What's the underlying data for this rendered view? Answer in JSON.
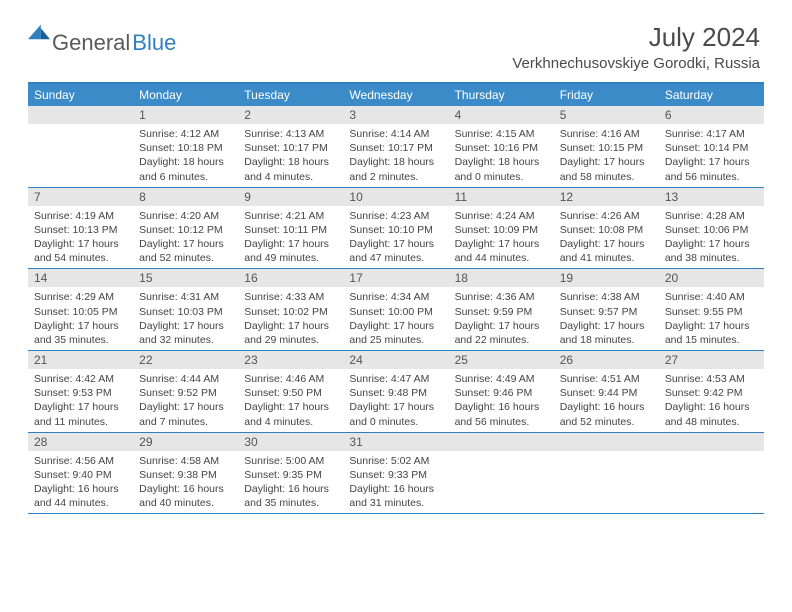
{
  "brand": {
    "word1": "General",
    "word2": "Blue"
  },
  "title": "July 2024",
  "location": "Verkhnechusovskiye Gorodki, Russia",
  "colors": {
    "accent": "#3b8bc9",
    "border": "#2f7fbf",
    "daybar": "#e6e6e6",
    "text": "#4a4a4a"
  },
  "daysOfWeek": [
    "Sunday",
    "Monday",
    "Tuesday",
    "Wednesday",
    "Thursday",
    "Friday",
    "Saturday"
  ],
  "weeks": [
    [
      {
        "n": "",
        "sr": "",
        "ss": "",
        "dl": ""
      },
      {
        "n": "1",
        "sr": "Sunrise: 4:12 AM",
        "ss": "Sunset: 10:18 PM",
        "dl": "Daylight: 18 hours and 6 minutes."
      },
      {
        "n": "2",
        "sr": "Sunrise: 4:13 AM",
        "ss": "Sunset: 10:17 PM",
        "dl": "Daylight: 18 hours and 4 minutes."
      },
      {
        "n": "3",
        "sr": "Sunrise: 4:14 AM",
        "ss": "Sunset: 10:17 PM",
        "dl": "Daylight: 18 hours and 2 minutes."
      },
      {
        "n": "4",
        "sr": "Sunrise: 4:15 AM",
        "ss": "Sunset: 10:16 PM",
        "dl": "Daylight: 18 hours and 0 minutes."
      },
      {
        "n": "5",
        "sr": "Sunrise: 4:16 AM",
        "ss": "Sunset: 10:15 PM",
        "dl": "Daylight: 17 hours and 58 minutes."
      },
      {
        "n": "6",
        "sr": "Sunrise: 4:17 AM",
        "ss": "Sunset: 10:14 PM",
        "dl": "Daylight: 17 hours and 56 minutes."
      }
    ],
    [
      {
        "n": "7",
        "sr": "Sunrise: 4:19 AM",
        "ss": "Sunset: 10:13 PM",
        "dl": "Daylight: 17 hours and 54 minutes."
      },
      {
        "n": "8",
        "sr": "Sunrise: 4:20 AM",
        "ss": "Sunset: 10:12 PM",
        "dl": "Daylight: 17 hours and 52 minutes."
      },
      {
        "n": "9",
        "sr": "Sunrise: 4:21 AM",
        "ss": "Sunset: 10:11 PM",
        "dl": "Daylight: 17 hours and 49 minutes."
      },
      {
        "n": "10",
        "sr": "Sunrise: 4:23 AM",
        "ss": "Sunset: 10:10 PM",
        "dl": "Daylight: 17 hours and 47 minutes."
      },
      {
        "n": "11",
        "sr": "Sunrise: 4:24 AM",
        "ss": "Sunset: 10:09 PM",
        "dl": "Daylight: 17 hours and 44 minutes."
      },
      {
        "n": "12",
        "sr": "Sunrise: 4:26 AM",
        "ss": "Sunset: 10:08 PM",
        "dl": "Daylight: 17 hours and 41 minutes."
      },
      {
        "n": "13",
        "sr": "Sunrise: 4:28 AM",
        "ss": "Sunset: 10:06 PM",
        "dl": "Daylight: 17 hours and 38 minutes."
      }
    ],
    [
      {
        "n": "14",
        "sr": "Sunrise: 4:29 AM",
        "ss": "Sunset: 10:05 PM",
        "dl": "Daylight: 17 hours and 35 minutes."
      },
      {
        "n": "15",
        "sr": "Sunrise: 4:31 AM",
        "ss": "Sunset: 10:03 PM",
        "dl": "Daylight: 17 hours and 32 minutes."
      },
      {
        "n": "16",
        "sr": "Sunrise: 4:33 AM",
        "ss": "Sunset: 10:02 PM",
        "dl": "Daylight: 17 hours and 29 minutes."
      },
      {
        "n": "17",
        "sr": "Sunrise: 4:34 AM",
        "ss": "Sunset: 10:00 PM",
        "dl": "Daylight: 17 hours and 25 minutes."
      },
      {
        "n": "18",
        "sr": "Sunrise: 4:36 AM",
        "ss": "Sunset: 9:59 PM",
        "dl": "Daylight: 17 hours and 22 minutes."
      },
      {
        "n": "19",
        "sr": "Sunrise: 4:38 AM",
        "ss": "Sunset: 9:57 PM",
        "dl": "Daylight: 17 hours and 18 minutes."
      },
      {
        "n": "20",
        "sr": "Sunrise: 4:40 AM",
        "ss": "Sunset: 9:55 PM",
        "dl": "Daylight: 17 hours and 15 minutes."
      }
    ],
    [
      {
        "n": "21",
        "sr": "Sunrise: 4:42 AM",
        "ss": "Sunset: 9:53 PM",
        "dl": "Daylight: 17 hours and 11 minutes."
      },
      {
        "n": "22",
        "sr": "Sunrise: 4:44 AM",
        "ss": "Sunset: 9:52 PM",
        "dl": "Daylight: 17 hours and 7 minutes."
      },
      {
        "n": "23",
        "sr": "Sunrise: 4:46 AM",
        "ss": "Sunset: 9:50 PM",
        "dl": "Daylight: 17 hours and 4 minutes."
      },
      {
        "n": "24",
        "sr": "Sunrise: 4:47 AM",
        "ss": "Sunset: 9:48 PM",
        "dl": "Daylight: 17 hours and 0 minutes."
      },
      {
        "n": "25",
        "sr": "Sunrise: 4:49 AM",
        "ss": "Sunset: 9:46 PM",
        "dl": "Daylight: 16 hours and 56 minutes."
      },
      {
        "n": "26",
        "sr": "Sunrise: 4:51 AM",
        "ss": "Sunset: 9:44 PM",
        "dl": "Daylight: 16 hours and 52 minutes."
      },
      {
        "n": "27",
        "sr": "Sunrise: 4:53 AM",
        "ss": "Sunset: 9:42 PM",
        "dl": "Daylight: 16 hours and 48 minutes."
      }
    ],
    [
      {
        "n": "28",
        "sr": "Sunrise: 4:56 AM",
        "ss": "Sunset: 9:40 PM",
        "dl": "Daylight: 16 hours and 44 minutes."
      },
      {
        "n": "29",
        "sr": "Sunrise: 4:58 AM",
        "ss": "Sunset: 9:38 PM",
        "dl": "Daylight: 16 hours and 40 minutes."
      },
      {
        "n": "30",
        "sr": "Sunrise: 5:00 AM",
        "ss": "Sunset: 9:35 PM",
        "dl": "Daylight: 16 hours and 35 minutes."
      },
      {
        "n": "31",
        "sr": "Sunrise: 5:02 AM",
        "ss": "Sunset: 9:33 PM",
        "dl": "Daylight: 16 hours and 31 minutes."
      },
      {
        "n": "",
        "sr": "",
        "ss": "",
        "dl": ""
      },
      {
        "n": "",
        "sr": "",
        "ss": "",
        "dl": ""
      },
      {
        "n": "",
        "sr": "",
        "ss": "",
        "dl": ""
      }
    ]
  ]
}
